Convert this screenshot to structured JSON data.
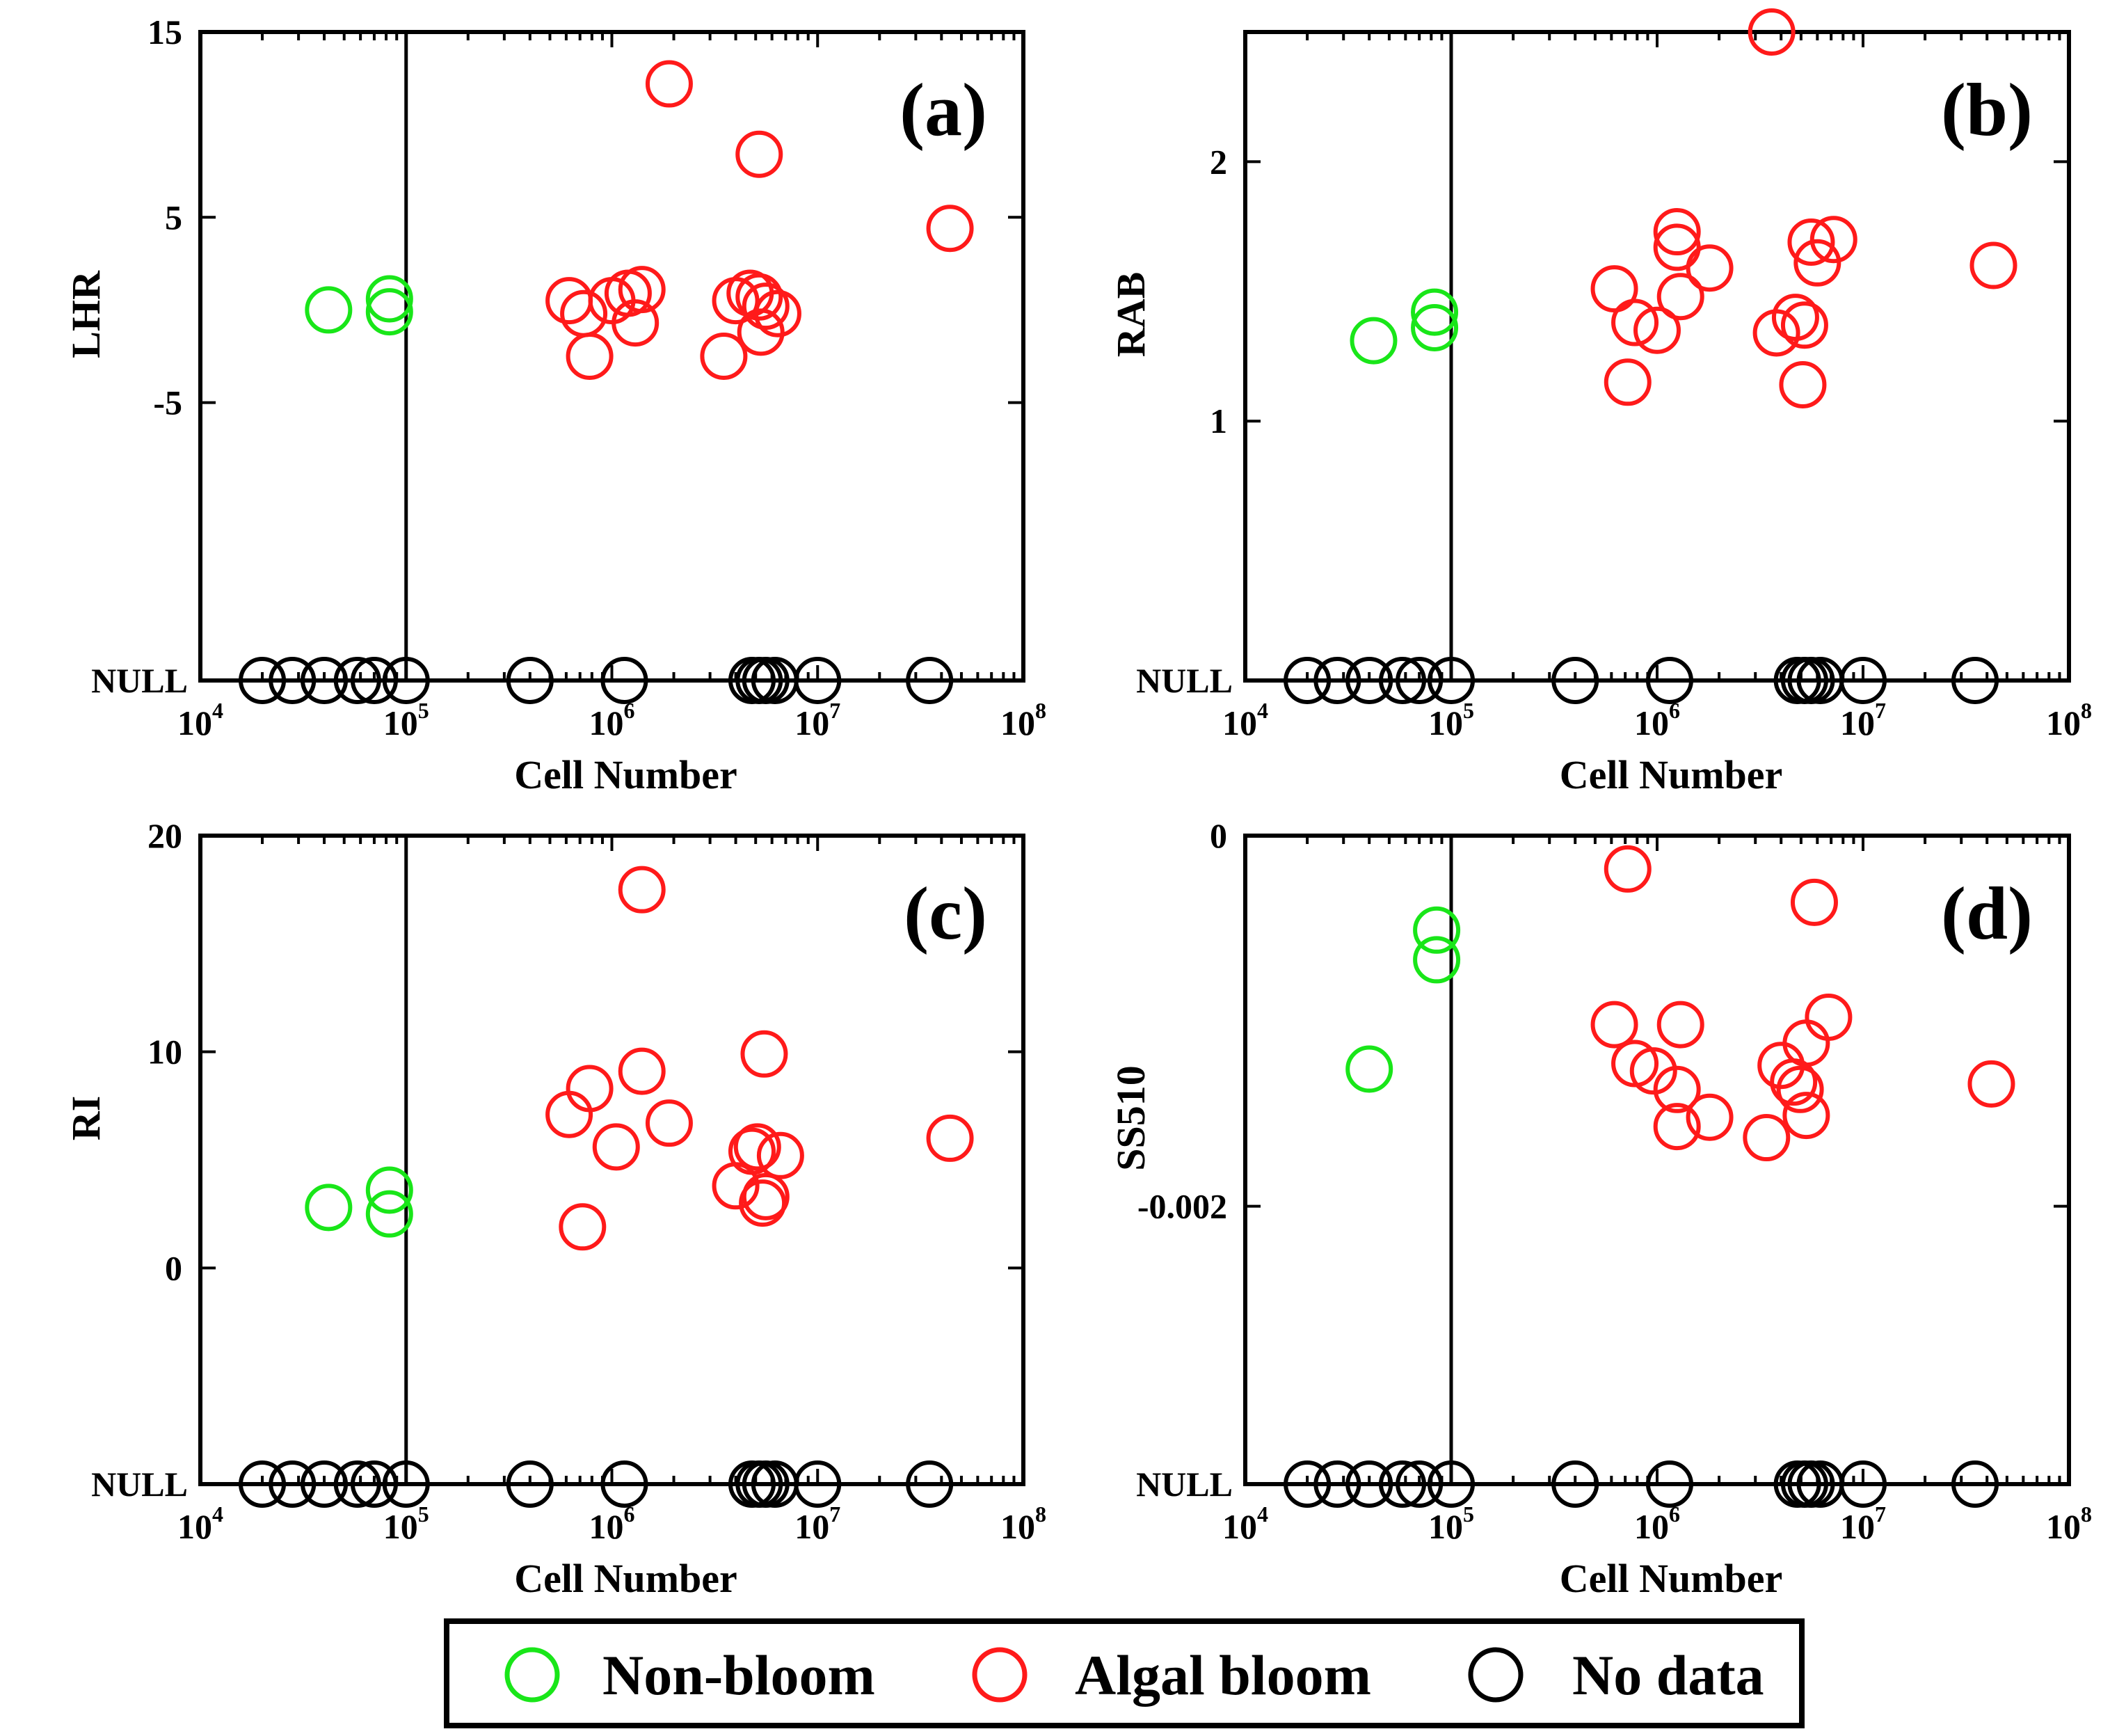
{
  "colors": {
    "nonbloom": "#19e619",
    "bloom": "#ff1a1a",
    "nodata": "#000000"
  },
  "legend": [
    {
      "key": "nonbloom",
      "label": "Non-bloom"
    },
    {
      "key": "bloom",
      "label": "Algal bloom"
    },
    {
      "key": "nodata",
      "label": "No data"
    }
  ],
  "chart_data": [
    {
      "type": "scatter",
      "id": "a",
      "panel_label": "(a)",
      "xlabel": "Cell Number",
      "ylabel": "LHR",
      "xscale": "log",
      "xlim_exp": [
        4,
        8
      ],
      "x_ticks": [
        {
          "base": "10",
          "exp": "4"
        },
        {
          "base": "10",
          "exp": "5"
        },
        {
          "base": "10",
          "exp": "6"
        },
        {
          "base": "10",
          "exp": "7"
        },
        {
          "base": "10",
          "exp": "8"
        }
      ],
      "ylim": [
        -20,
        15
      ],
      "null_label": "NULL",
      "y_ticks": [
        {
          "value": -5,
          "label": "-5"
        },
        {
          "value": 5,
          "label": "5"
        },
        {
          "value": 15,
          "label": "15"
        }
      ],
      "threshold_x": 100000,
      "series": [
        {
          "name": "Non-bloom",
          "color_key": "nonbloom",
          "points": [
            [
              42000,
              0.0
            ],
            [
              83000,
              0.6
            ],
            [
              83000,
              -0.1
            ]
          ]
        },
        {
          "name": "Algal bloom",
          "color_key": "bloom",
          "points": [
            [
              1900000,
              12.2
            ],
            [
              5200000,
              8.4
            ],
            [
              44000000,
              4.4
            ],
            [
              620000,
              0.5
            ],
            [
              730000,
              -0.2
            ],
            [
              1000000,
              0.5
            ],
            [
              1200000,
              0.9
            ],
            [
              1400000,
              1.1
            ],
            [
              1300000,
              -0.7
            ],
            [
              780000,
              -2.5
            ],
            [
              3500000,
              -2.5
            ],
            [
              4000000,
              0.5
            ],
            [
              4700000,
              0.9
            ],
            [
              5200000,
              0.7
            ],
            [
              5600000,
              0.2
            ],
            [
              6400000,
              -0.2
            ],
            [
              5300000,
              -1.2
            ]
          ]
        }
      ],
      "nodata_x": [
        20000,
        28000,
        40000,
        58000,
        70000,
        100000,
        400000,
        1150000,
        4800000,
        5200000,
        5600000,
        6200000,
        10000000,
        35000000
      ]
    },
    {
      "type": "scatter",
      "id": "b",
      "panel_label": "(b)",
      "xlabel": "Cell Number",
      "ylabel": "RAB",
      "xscale": "log",
      "xlim_exp": [
        4,
        8
      ],
      "x_ticks": [
        {
          "base": "10",
          "exp": "4"
        },
        {
          "base": "10",
          "exp": "5"
        },
        {
          "base": "10",
          "exp": "6"
        },
        {
          "base": "10",
          "exp": "7"
        },
        {
          "base": "10",
          "exp": "8"
        }
      ],
      "ylim": [
        0,
        2.5
      ],
      "null_label": "NULL",
      "y_ticks": [
        {
          "value": 1,
          "label": "1"
        },
        {
          "value": 2,
          "label": "2"
        }
      ],
      "threshold_x": 100000,
      "series": [
        {
          "name": "Non-bloom",
          "color_key": "nonbloom",
          "points": [
            [
              42000,
              1.31
            ],
            [
              83000,
              1.42
            ],
            [
              83000,
              1.36
            ]
          ]
        },
        {
          "name": "Algal bloom",
          "color_key": "bloom",
          "points": [
            [
              3600000,
              2.5
            ],
            [
              620000,
              1.51
            ],
            [
              780000,
              1.38
            ],
            [
              720000,
              1.15
            ],
            [
              1000000,
              1.35
            ],
            [
              1250000,
              1.73
            ],
            [
              1250000,
              1.67
            ],
            [
              1300000,
              1.48
            ],
            [
              1800000,
              1.59
            ],
            [
              3800000,
              1.34
            ],
            [
              4700000,
              1.4
            ],
            [
              5200000,
              1.37
            ],
            [
              5100000,
              1.14
            ],
            [
              5600000,
              1.69
            ],
            [
              6000000,
              1.61
            ],
            [
              7200000,
              1.7
            ],
            [
              43000000,
              1.6
            ]
          ]
        }
      ],
      "nodata_x": [
        20000,
        28000,
        40000,
        58000,
        70000,
        100000,
        400000,
        1150000,
        4800000,
        5200000,
        5600000,
        6200000,
        10000000,
        35000000
      ]
    },
    {
      "type": "scatter",
      "id": "c",
      "panel_label": "(c)",
      "xlabel": "Cell Number",
      "ylabel": "RI",
      "xscale": "log",
      "xlim_exp": [
        4,
        8
      ],
      "x_ticks": [
        {
          "base": "10",
          "exp": "4"
        },
        {
          "base": "10",
          "exp": "5"
        },
        {
          "base": "10",
          "exp": "6"
        },
        {
          "base": "10",
          "exp": "7"
        },
        {
          "base": "10",
          "exp": "8"
        }
      ],
      "ylim": [
        -10,
        20
      ],
      "null_label": "NULL",
      "y_ticks": [
        {
          "value": 0,
          "label": "0"
        },
        {
          "value": 10,
          "label": "10"
        },
        {
          "value": 20,
          "label": "20"
        }
      ],
      "threshold_x": 100000,
      "series": [
        {
          "name": "Non-bloom",
          "color_key": "nonbloom",
          "points": [
            [
              42000,
              2.8
            ],
            [
              83000,
              3.6
            ],
            [
              83000,
              2.5
            ]
          ]
        },
        {
          "name": "Algal bloom",
          "color_key": "bloom",
          "points": [
            [
              1400000,
              17.5
            ],
            [
              620000,
              7.1
            ],
            [
              780000,
              8.3
            ],
            [
              720000,
              1.9
            ],
            [
              1050000,
              5.6
            ],
            [
              1400000,
              9.1
            ],
            [
              1900000,
              6.7
            ],
            [
              4000000,
              3.8
            ],
            [
              4800000,
              5.4
            ],
            [
              5100000,
              5.6
            ],
            [
              5400000,
              3.0
            ],
            [
              5600000,
              3.3
            ],
            [
              5500000,
              9.9
            ],
            [
              6600000,
              5.2
            ],
            [
              44000000,
              6.0
            ]
          ]
        }
      ],
      "nodata_x": [
        20000,
        28000,
        40000,
        58000,
        70000,
        100000,
        400000,
        1150000,
        4800000,
        5200000,
        5600000,
        6200000,
        10000000,
        35000000
      ]
    },
    {
      "type": "scatter",
      "id": "d",
      "panel_label": "(d)",
      "xlabel": "Cell Number",
      "ylabel": "SS510",
      "xscale": "log",
      "xlim_exp": [
        4,
        8
      ],
      "x_ticks": [
        {
          "base": "10",
          "exp": "4"
        },
        {
          "base": "10",
          "exp": "5"
        },
        {
          "base": "10",
          "exp": "6"
        },
        {
          "base": "10",
          "exp": "7"
        },
        {
          "base": "10",
          "exp": "8"
        }
      ],
      "ylim": [
        -0.0035,
        0
      ],
      "null_label": "NULL",
      "y_ticks": [
        {
          "value": -0.002,
          "label": "-0.002"
        },
        {
          "value": 0,
          "label": "0"
        }
      ],
      "threshold_x": 100000,
      "series": [
        {
          "name": "Non-bloom",
          "color_key": "nonbloom",
          "points": [
            [
              40000,
              -0.00126
            ],
            [
              85000,
              -0.00051
            ],
            [
              85000,
              -0.00067
            ]
          ]
        },
        {
          "name": "Algal bloom",
          "color_key": "bloom",
          "points": [
            [
              720000,
              -0.00018
            ],
            [
              5800000,
              -0.00036
            ],
            [
              620000,
              -0.00102
            ],
            [
              780000,
              -0.00123
            ],
            [
              960000,
              -0.00127
            ],
            [
              1300000,
              -0.00102
            ],
            [
              1250000,
              -0.00137
            ],
            [
              1250000,
              -0.00157
            ],
            [
              1800000,
              -0.00152
            ],
            [
              3400000,
              -0.00163
            ],
            [
              4000000,
              -0.00124
            ],
            [
              4600000,
              -0.00133
            ],
            [
              4950000,
              -0.00137
            ],
            [
              5300000,
              -0.00151
            ],
            [
              5300000,
              -0.00112
            ],
            [
              6800000,
              -0.00098
            ],
            [
              42000000,
              -0.00134
            ]
          ]
        }
      ],
      "nodata_x": [
        20000,
        28000,
        40000,
        58000,
        70000,
        100000,
        400000,
        1150000,
        4800000,
        5200000,
        5600000,
        6200000,
        10000000,
        35000000
      ]
    }
  ]
}
